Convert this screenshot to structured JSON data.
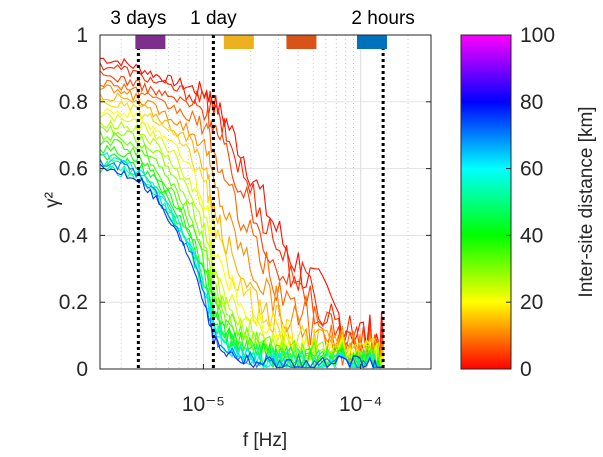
{
  "chart_data": {
    "type": "line",
    "ylabel": "γ²",
    "xlabel": "f [Hz]",
    "x_scale": "log",
    "xlim": [
      2.2e-06,
      0.00028
    ],
    "ylim": [
      0,
      1
    ],
    "grid": true,
    "x_ticks": [
      {
        "value": 1e-05,
        "label": "10⁻⁵"
      },
      {
        "value": 0.0001,
        "label": "10⁻⁴"
      }
    ],
    "y_ticks": [
      {
        "value": 0,
        "label": "0"
      },
      {
        "value": 0.2,
        "label": "0.2"
      },
      {
        "value": 0.4,
        "label": "0.4"
      },
      {
        "value": 0.6,
        "label": "0.6"
      },
      {
        "value": 0.8,
        "label": "0.8"
      },
      {
        "value": 1,
        "label": "1"
      }
    ],
    "period_markers": [
      {
        "label": "3 days",
        "frequency": 3.858e-06
      },
      {
        "label": "1 day",
        "frequency": 1.157e-05
      },
      {
        "label": "2 hours",
        "frequency": 0.0001389
      }
    ],
    "colored_markers": [
      {
        "frequency": 4.6e-06,
        "color": "#7e2f8e"
      },
      {
        "frequency": 1.68e-05,
        "color": "#edb120"
      },
      {
        "frequency": 4.2e-05,
        "color": "#d95319"
      },
      {
        "frequency": 0.000118,
        "color": "#0072bd"
      }
    ],
    "colorbar": {
      "label": "Inter-site distance [km]",
      "range": [
        0,
        100
      ],
      "ticks": [
        {
          "value": 0,
          "label": "0"
        },
        {
          "value": 20,
          "label": "20"
        },
        {
          "value": 40,
          "label": "40"
        },
        {
          "value": 60,
          "label": "60"
        },
        {
          "value": 80,
          "label": "80"
        },
        {
          "value": 100,
          "label": "100"
        }
      ],
      "colormap": [
        "#ff0000",
        "#ffff00",
        "#00ff00",
        "#00ffff",
        "#0000ff",
        "#ff00ff"
      ]
    },
    "series_profile": {
      "x": [
        2.2e-06,
        3e-06,
        3.9e-06,
        5e-06,
        6.5e-06,
        8.5e-06,
        1.05e-05,
        1.16e-05,
        1.4e-05,
        1.8e-05,
        2.4e-05,
        3.2e-05,
        4.5e-05,
        6.5e-05,
        9e-05,
        0.00012,
        0.000139
      ],
      "note_free_params": true
    },
    "series": [
      {
        "distance": 1,
        "values": [
          0.93,
          0.92,
          0.9,
          0.88,
          0.86,
          0.84,
          0.83,
          0.8,
          0.74,
          0.64,
          0.5,
          0.38,
          0.28,
          0.18,
          0.12,
          0.09,
          0.1
        ]
      },
      {
        "distance": 3,
        "values": [
          0.91,
          0.9,
          0.88,
          0.86,
          0.84,
          0.82,
          0.8,
          0.78,
          0.7,
          0.58,
          0.46,
          0.34,
          0.24,
          0.16,
          0.1,
          0.07,
          0.07
        ]
      },
      {
        "distance": 5,
        "values": [
          0.88,
          0.87,
          0.85,
          0.83,
          0.81,
          0.79,
          0.77,
          0.73,
          0.64,
          0.52,
          0.4,
          0.3,
          0.2,
          0.13,
          0.08,
          0.06,
          0.06
        ]
      },
      {
        "distance": 8,
        "values": [
          0.86,
          0.85,
          0.83,
          0.8,
          0.78,
          0.75,
          0.72,
          0.65,
          0.55,
          0.44,
          0.32,
          0.22,
          0.15,
          0.1,
          0.06,
          0.05,
          0.04
        ]
      },
      {
        "distance": 11,
        "values": [
          0.84,
          0.83,
          0.81,
          0.78,
          0.75,
          0.71,
          0.66,
          0.56,
          0.46,
          0.35,
          0.25,
          0.17,
          0.11,
          0.07,
          0.05,
          0.04,
          0.04
        ]
      },
      {
        "distance": 14,
        "values": [
          0.82,
          0.81,
          0.79,
          0.76,
          0.72,
          0.67,
          0.6,
          0.48,
          0.38,
          0.28,
          0.19,
          0.13,
          0.08,
          0.05,
          0.04,
          0.03,
          0.03
        ]
      },
      {
        "distance": 17,
        "values": [
          0.8,
          0.79,
          0.77,
          0.74,
          0.7,
          0.63,
          0.54,
          0.42,
          0.32,
          0.23,
          0.15,
          0.1,
          0.07,
          0.05,
          0.03,
          0.03,
          0.02
        ]
      },
      {
        "distance": 20,
        "values": [
          0.78,
          0.77,
          0.75,
          0.72,
          0.67,
          0.59,
          0.49,
          0.37,
          0.27,
          0.19,
          0.12,
          0.08,
          0.06,
          0.04,
          0.03,
          0.02,
          0.02
        ]
      },
      {
        "distance": 23,
        "values": [
          0.76,
          0.75,
          0.73,
          0.7,
          0.64,
          0.55,
          0.44,
          0.32,
          0.23,
          0.16,
          0.1,
          0.07,
          0.05,
          0.03,
          0.03,
          0.02,
          0.02
        ]
      },
      {
        "distance": 26,
        "values": [
          0.74,
          0.73,
          0.71,
          0.67,
          0.61,
          0.51,
          0.4,
          0.28,
          0.2,
          0.13,
          0.09,
          0.06,
          0.04,
          0.03,
          0.02,
          0.02,
          0.02
        ]
      },
      {
        "distance": 29,
        "values": [
          0.72,
          0.71,
          0.69,
          0.65,
          0.58,
          0.48,
          0.36,
          0.25,
          0.17,
          0.11,
          0.07,
          0.05,
          0.04,
          0.03,
          0.02,
          0.02,
          0.02
        ]
      },
      {
        "distance": 32,
        "values": [
          0.7,
          0.69,
          0.67,
          0.63,
          0.55,
          0.45,
          0.33,
          0.22,
          0.15,
          0.1,
          0.06,
          0.04,
          0.03,
          0.02,
          0.02,
          0.02,
          0.01
        ]
      },
      {
        "distance": 35,
        "values": [
          0.68,
          0.67,
          0.65,
          0.6,
          0.52,
          0.42,
          0.3,
          0.2,
          0.13,
          0.08,
          0.05,
          0.04,
          0.03,
          0.02,
          0.02,
          0.01,
          0.01
        ]
      },
      {
        "distance": 38,
        "values": [
          0.66,
          0.65,
          0.63,
          0.58,
          0.5,
          0.4,
          0.28,
          0.18,
          0.11,
          0.07,
          0.05,
          0.03,
          0.02,
          0.02,
          0.01,
          0.01,
          0.01
        ]
      },
      {
        "distance": 41,
        "values": [
          0.64,
          0.63,
          0.61,
          0.56,
          0.48,
          0.38,
          0.26,
          0.17,
          0.1,
          0.06,
          0.04,
          0.03,
          0.02,
          0.02,
          0.01,
          0.01,
          0.01
        ]
      },
      {
        "distance": 45,
        "values": [
          0.62,
          0.61,
          0.59,
          0.54,
          0.46,
          0.36,
          0.24,
          0.15,
          0.09,
          0.05,
          0.04,
          0.03,
          0.02,
          0.01,
          0.01,
          0.01,
          0.01
        ]
      },
      {
        "distance": 50,
        "values": [
          0.6,
          0.59,
          0.57,
          0.52,
          0.44,
          0.34,
          0.22,
          0.14,
          0.08,
          0.05,
          0.03,
          0.02,
          0.02,
          0.01,
          0.01,
          0.01,
          0.01
        ]
      },
      {
        "distance": 55,
        "values": [
          0.62,
          0.6,
          0.58,
          0.53,
          0.45,
          0.35,
          0.22,
          0.13,
          0.07,
          0.04,
          0.03,
          0.02,
          0.02,
          0.01,
          0.01,
          0.01,
          0.01
        ]
      },
      {
        "distance": 62,
        "values": [
          0.64,
          0.62,
          0.59,
          0.54,
          0.46,
          0.36,
          0.21,
          0.12,
          0.06,
          0.04,
          0.03,
          0.02,
          0.01,
          0.01,
          0.01,
          0.01,
          0.01
        ]
      },
      {
        "distance": 70,
        "values": [
          0.62,
          0.61,
          0.58,
          0.52,
          0.43,
          0.34,
          0.19,
          0.1,
          0.05,
          0.03,
          0.02,
          0.02,
          0.01,
          0.01,
          0.01,
          0.01,
          0.01
        ]
      },
      {
        "distance": 76,
        "values": [
          0.6,
          0.59,
          0.57,
          0.51,
          0.42,
          0.32,
          0.18,
          0.09,
          0.05,
          0.03,
          0.02,
          0.01,
          0.01,
          0.01,
          0.01,
          0.01,
          0.01
        ]
      }
    ]
  }
}
